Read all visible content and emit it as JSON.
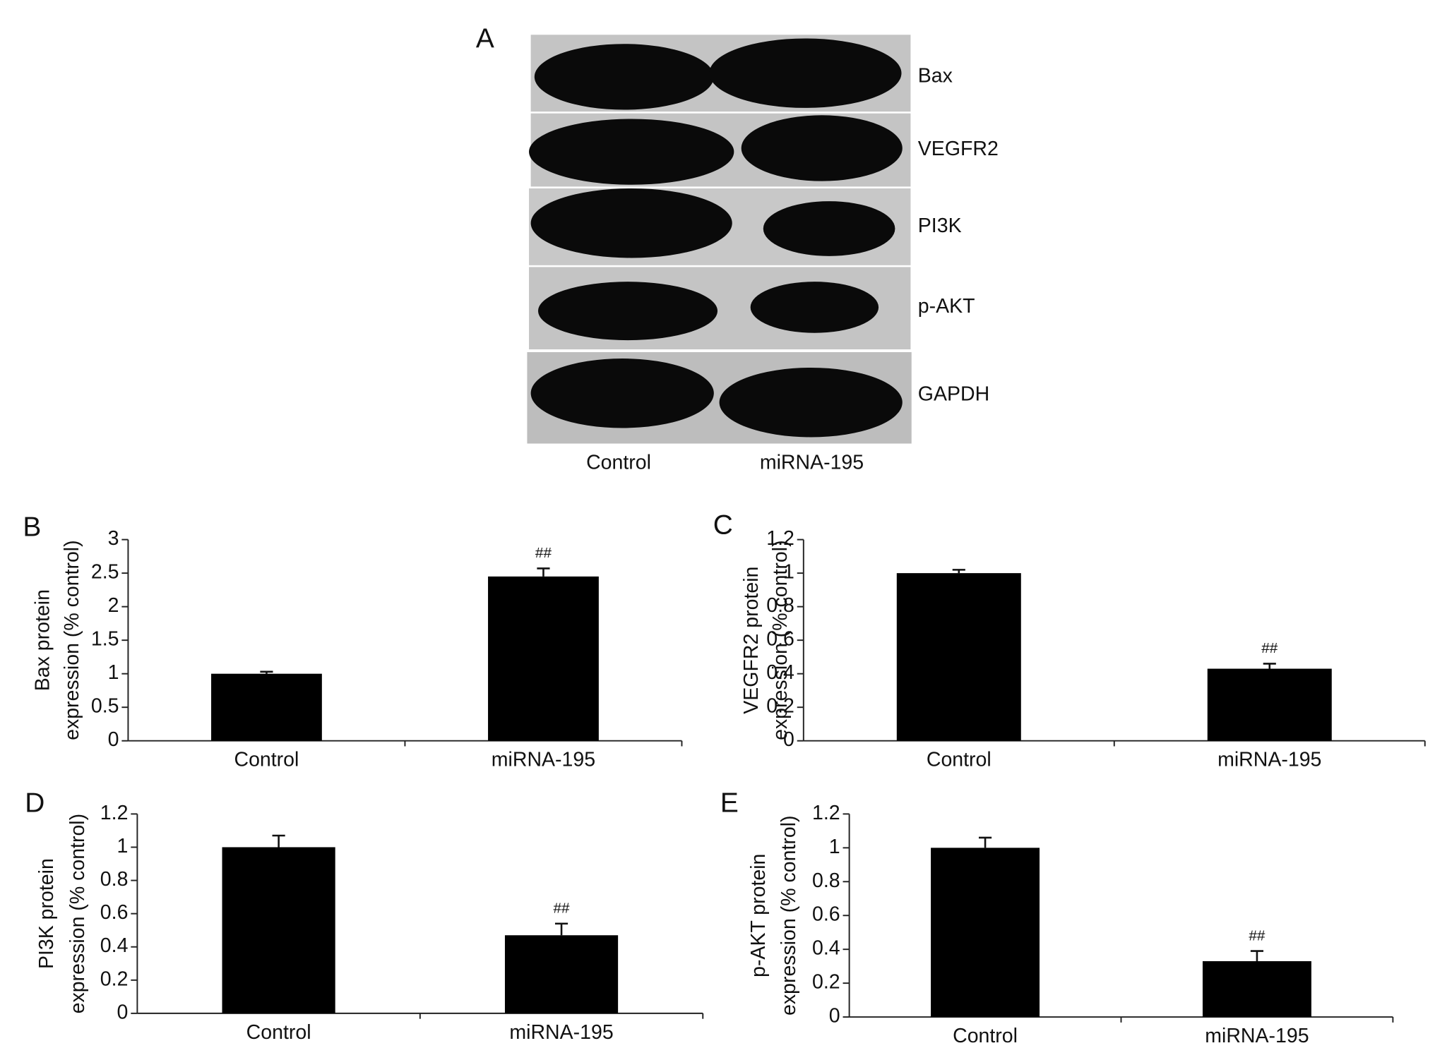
{
  "blot": {
    "panel": "A",
    "bands": [
      "Bax",
      "VEGFR2",
      "PI3K",
      "p-AKT",
      "GAPDH"
    ],
    "lanes": [
      "Control",
      "miRNA-195"
    ]
  },
  "chart_data": [
    {
      "type": "bar",
      "panel": "B",
      "ylabel": [
        "Bax protein",
        "expression (% control)"
      ],
      "categories": [
        "Control",
        "miRNA-195"
      ],
      "values": [
        1.0,
        2.45
      ],
      "errors": [
        0.03,
        0.12
      ],
      "value_annotations": [
        null,
        "##"
      ],
      "color": "#000000",
      "ylim": [
        0,
        3
      ],
      "yticks": [
        0,
        0.5,
        1,
        1.5,
        2,
        2.5,
        3
      ]
    },
    {
      "type": "bar",
      "panel": "C",
      "ylabel": [
        "VEGFR2 protein",
        "expression (% control)"
      ],
      "categories": [
        "Control",
        "miRNA-195"
      ],
      "values": [
        1.0,
        0.43
      ],
      "errors": [
        0.02,
        0.03
      ],
      "value_annotations": [
        null,
        "##"
      ],
      "color": "#000000",
      "ylim": [
        0,
        1.2
      ],
      "yticks": [
        0,
        0.2,
        0.4,
        0.6,
        0.8,
        1,
        1.2
      ]
    },
    {
      "type": "bar",
      "panel": "D",
      "ylabel": [
        "PI3K protein",
        "expression (% control)"
      ],
      "categories": [
        "Control",
        "miRNA-195"
      ],
      "values": [
        1.0,
        0.47
      ],
      "errors": [
        0.07,
        0.07
      ],
      "value_annotations": [
        null,
        "##"
      ],
      "color": "#000000",
      "ylim": [
        0,
        1.2
      ],
      "yticks": [
        0,
        0.2,
        0.4,
        0.6,
        0.8,
        1,
        1.2
      ]
    },
    {
      "type": "bar",
      "panel": "E",
      "ylabel": [
        "p-AKT protein",
        "expression (% control)"
      ],
      "categories": [
        "Control",
        "miRNA-195"
      ],
      "values": [
        1.0,
        0.33
      ],
      "errors": [
        0.06,
        0.06
      ],
      "value_annotations": [
        null,
        "##"
      ],
      "color": "#000000",
      "ylim": [
        0,
        1.2
      ],
      "yticks": [
        0,
        0.2,
        0.4,
        0.6,
        0.8,
        1,
        1.2
      ]
    }
  ]
}
